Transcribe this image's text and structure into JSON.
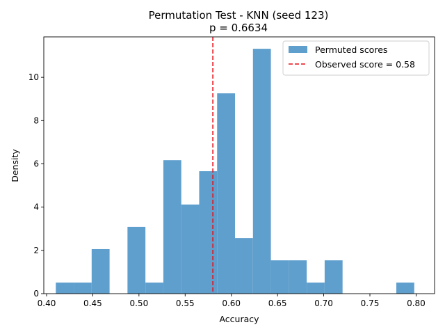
{
  "chart_data": {
    "type": "bar",
    "title": "Permutation Test - KNN (seed 123)",
    "subtitle": "p = 0.6634",
    "xlabel": "Accuracy",
    "ylabel": "Density",
    "xlim": [
      0.397,
      0.82
    ],
    "ylim": [
      0,
      11.87
    ],
    "x_ticks": [
      "0.40",
      "0.45",
      "0.50",
      "0.55",
      "0.60",
      "0.65",
      "0.70",
      "0.75",
      "0.80"
    ],
    "x_tick_values": [
      0.4,
      0.45,
      0.5,
      0.55,
      0.6,
      0.65,
      0.7,
      0.75,
      0.8
    ],
    "y_ticks": [
      "0",
      "2",
      "4",
      "6",
      "8",
      "10"
    ],
    "y_tick_values": [
      0,
      2,
      4,
      6,
      8,
      10
    ],
    "grid": false,
    "legend_position": "top-right",
    "bar_color": "#5f9fcd",
    "observed_color": "#e8111a",
    "histogram": {
      "name": "Permuted scores",
      "bin_edges": [
        0.41,
        0.4294,
        0.4488,
        0.4682,
        0.4876,
        0.507,
        0.5264,
        0.5458,
        0.5652,
        0.5846,
        0.604,
        0.6234,
        0.6428,
        0.6622,
        0.6816,
        0.701,
        0.7204,
        0.7398,
        0.7592,
        0.7786,
        0.798
      ],
      "values": [
        0.51,
        0.51,
        2.06,
        0,
        3.09,
        0.51,
        6.17,
        4.12,
        5.66,
        9.26,
        2.57,
        11.32,
        1.54,
        1.54,
        0.51,
        1.54,
        0,
        0,
        0,
        0.51
      ]
    },
    "observed": {
      "name": "Observed score = 0.58",
      "value": 0.58
    }
  }
}
